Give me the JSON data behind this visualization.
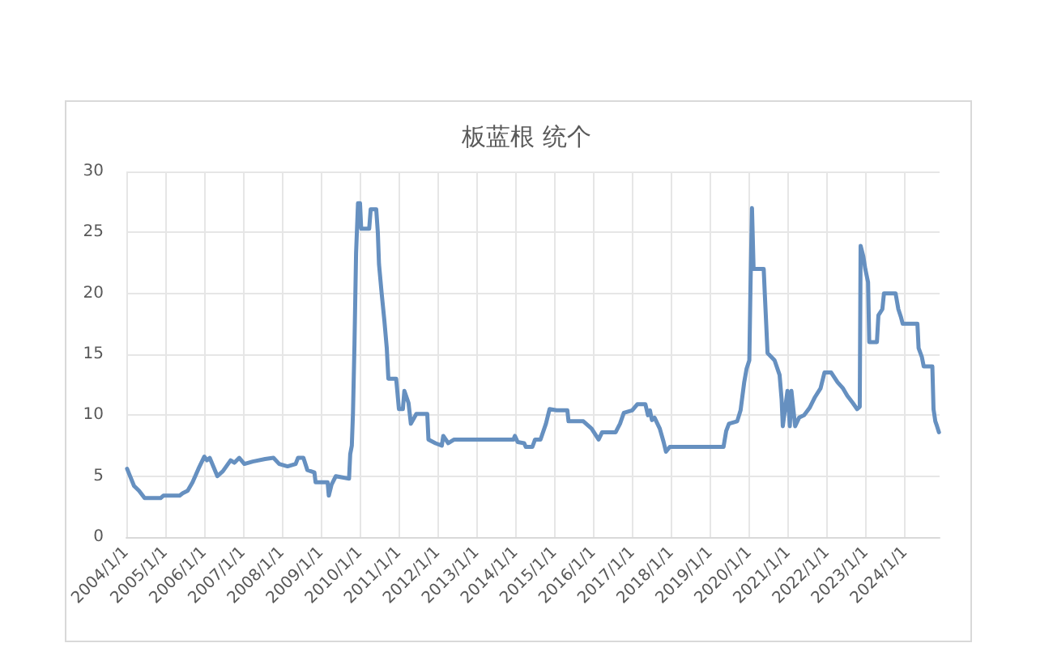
{
  "chart_data": {
    "type": "line",
    "title": "板蓝根 统个",
    "x": [
      "2004-01-08",
      "2004-03-13",
      "2004-04-29",
      "2004-06-20",
      "2004-11-17",
      "2004-12-13",
      "2005-05-15",
      "2005-06-13",
      "2005-07-29",
      "2005-09-13",
      "2005-11-07",
      "2006-01-01",
      "2006-01-26",
      "2006-02-21",
      "2006-05-04",
      "2006-06-24",
      "2006-09-05",
      "2006-10-11",
      "2006-11-25",
      "2007-01-12",
      "2007-04-01",
      "2007-07-26",
      "2007-10-12",
      "2007-12-05",
      "2008-02-21",
      "2008-05-07",
      "2008-05-29",
      "2008-07-19",
      "2008-08-25",
      "2008-10-30",
      "2008-11-10",
      "2009-03-03",
      "2009-03-14",
      "2009-04-09",
      "2009-05-19",
      "2009-09-20",
      "2009-10-01",
      "2009-10-16",
      "2009-10-27",
      "2009-11-10",
      "2009-11-25",
      "2009-12-13",
      "2010-01-01",
      "2010-01-12",
      "2010-03-28",
      "2010-04-11",
      "2010-06-02",
      "2010-06-17",
      "2010-06-28",
      "2010-07-23",
      "2010-08-18",
      "2010-09-09",
      "2010-09-24",
      "2010-12-06",
      "2011-01-01",
      "2011-02-07",
      "2011-02-21",
      "2011-04-01",
      "2011-04-23",
      "2011-06-13",
      "2011-09-24",
      "2011-10-05",
      "2011-12-10",
      "2012-02-07",
      "2012-02-21",
      "2012-04-08",
      "2012-06-02",
      "2013-12-10",
      "2013-12-24",
      "2014-01-19",
      "2014-03-21",
      "2014-04-05",
      "2014-06-06",
      "2014-07-01",
      "2014-08-21",
      "2014-10-11",
      "2014-11-14",
      "2015-01-19",
      "2015-04-30",
      "2015-05-11",
      "2015-09-27",
      "2015-12-13",
      "2016-02-17",
      "2016-03-21",
      "2016-07-26",
      "2016-09-05",
      "2016-10-11",
      "2016-12-28",
      "2017-02-14",
      "2017-05-01",
      "2017-05-25",
      "2017-06-13",
      "2017-07-01",
      "2017-07-26",
      "2017-09-13",
      "2017-10-19",
      "2017-11-10",
      "2017-12-16",
      "2019-05-04",
      "2019-05-29",
      "2019-06-24",
      "2019-09-09",
      "2019-10-11",
      "2019-11-14",
      "2019-12-06",
      "2020-01-01",
      "2020-01-12",
      "2020-01-26",
      "2020-02-10",
      "2020-05-15",
      "2020-05-25",
      "2020-06-20",
      "2020-08-25",
      "2020-10-11",
      "2020-10-30",
      "2020-11-10",
      "2020-12-24",
      "2021-01-15",
      "2021-01-30",
      "2021-03-06",
      "2021-04-12",
      "2021-05-29",
      "2021-07-19",
      "2021-09-09",
      "2021-10-30",
      "2021-12-06",
      "2022-02-07",
      "2022-04-08",
      "2022-05-29",
      "2022-07-08",
      "2022-08-29",
      "2022-10-08",
      "2022-11-02",
      "2022-11-10",
      "2022-12-06",
      "2022-12-24",
      "2023-01-19",
      "2023-01-30",
      "2023-04-12",
      "2023-04-26",
      "2023-06-02",
      "2023-06-17",
      "2023-10-04",
      "2023-10-30",
      "2023-11-25",
      "2023-12-10",
      "2024-04-26",
      "2024-05-07",
      "2024-06-06",
      "2024-06-24",
      "2024-09-13",
      "2024-09-24",
      "2024-10-11",
      "2024-10-27",
      "2024-11-14"
    ],
    "series": [
      {
        "color": "#6690c0",
        "values": [
          5.6,
          4.2,
          3.8,
          3.2,
          3.2,
          3.4,
          3.4,
          3.6,
          3.8,
          4.5,
          5.6,
          6.6,
          6.3,
          6.5,
          5.0,
          5.4,
          6.3,
          6.1,
          6.5,
          6.0,
          6.2,
          6.4,
          6.5,
          6.0,
          5.8,
          6.0,
          6.5,
          6.5,
          5.5,
          5.3,
          4.5,
          4.5,
          3.4,
          4.3,
          5.0,
          4.8,
          6.8,
          7.5,
          10.2,
          15.8,
          23.3,
          27.4,
          27.4,
          25.3,
          25.3,
          26.9,
          26.9,
          25.0,
          22.4,
          20.0,
          17.7,
          15.5,
          13.0,
          13.0,
          10.5,
          10.5,
          12.0,
          11.0,
          9.3,
          10.1,
          10.1,
          8.0,
          7.7,
          7.5,
          8.3,
          7.7,
          8.0,
          8.0,
          8.3,
          7.8,
          7.7,
          7.4,
          7.4,
          8.0,
          8.0,
          9.3,
          10.5,
          10.4,
          10.4,
          9.5,
          9.5,
          8.9,
          8.0,
          8.6,
          8.6,
          9.3,
          10.2,
          10.4,
          10.9,
          10.9,
          10.0,
          10.4,
          9.6,
          9.8,
          8.9,
          7.8,
          7.0,
          7.4,
          7.4,
          8.7,
          9.3,
          9.5,
          10.4,
          12.7,
          13.8,
          14.5,
          20.6,
          27.0,
          22.0,
          22.0,
          20.0,
          15.1,
          14.5,
          13.3,
          11.3,
          9.1,
          12.0,
          9.1,
          12.0,
          9.1,
          9.8,
          10.0,
          10.6,
          11.5,
          12.2,
          13.5,
          13.5,
          12.7,
          12.2,
          11.6,
          11.0,
          10.5,
          10.7,
          23.9,
          23.0,
          22.0,
          20.9,
          16.0,
          16.0,
          18.2,
          18.7,
          20.0,
          20.0,
          18.7,
          18.0,
          17.5,
          17.5,
          15.5,
          14.8,
          14.0,
          14.0,
          10.5,
          9.5,
          9.1,
          8.6
        ]
      }
    ],
    "xlim": [
      "2004-01-01",
      "2024-11-20"
    ],
    "xticks": [
      {
        "value": "2004-01-01",
        "label": "2004/1/1"
      },
      {
        "value": "2005-01-01",
        "label": "2005/1/1"
      },
      {
        "value": "2006-01-01",
        "label": "2006/1/1"
      },
      {
        "value": "2007-01-01",
        "label": "2007/1/1"
      },
      {
        "value": "2008-01-01",
        "label": "2008/1/1"
      },
      {
        "value": "2009-01-01",
        "label": "2009/1/1"
      },
      {
        "value": "2010-01-01",
        "label": "2010/1/1"
      },
      {
        "value": "2011-01-01",
        "label": "2011/1/1"
      },
      {
        "value": "2012-01-01",
        "label": "2012/1/1"
      },
      {
        "value": "2013-01-01",
        "label": "2013/1/1"
      },
      {
        "value": "2014-01-01",
        "label": "2014/1/1"
      },
      {
        "value": "2015-01-01",
        "label": "2015/1/1"
      },
      {
        "value": "2016-01-01",
        "label": "2016/1/1"
      },
      {
        "value": "2017-01-01",
        "label": "2017/1/1"
      },
      {
        "value": "2018-01-01",
        "label": "2018/1/1"
      },
      {
        "value": "2019-01-01",
        "label": "2019/1/1"
      },
      {
        "value": "2020-01-01",
        "label": "2020/1/1"
      },
      {
        "value": "2021-01-01",
        "label": "2021/1/1"
      },
      {
        "value": "2022-01-01",
        "label": "2022/1/1"
      },
      {
        "value": "2023-01-01",
        "label": "2023/1/1"
      },
      {
        "value": "2024-01-01",
        "label": "2024/1/1"
      }
    ],
    "ylim": [
      0,
      30
    ],
    "yticks": [
      0,
      5,
      10,
      15,
      20,
      25,
      30
    ],
    "grid": true,
    "marker": "none",
    "line_style": "solid"
  }
}
